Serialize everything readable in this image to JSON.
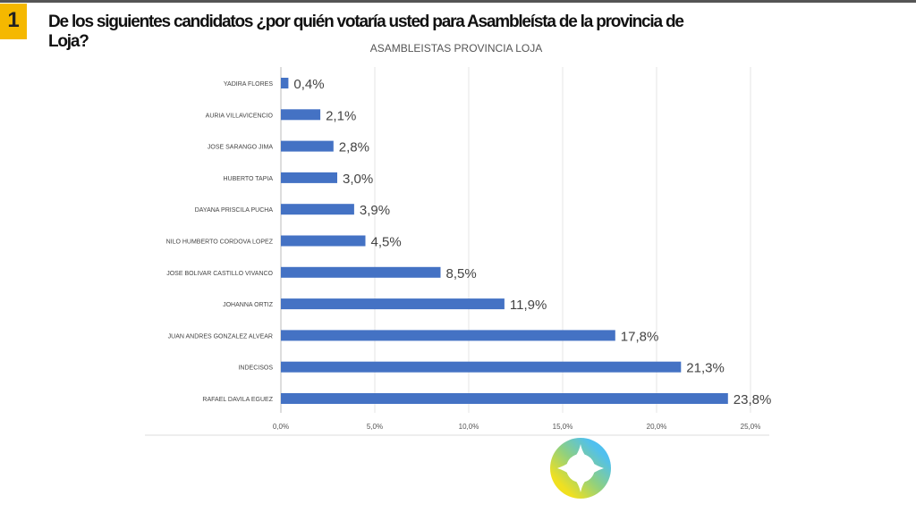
{
  "header": {
    "number": "1",
    "question": "De los siguientes candidatos ¿por quién votaría usted para Asambleísta de la provincia de Loja?"
  },
  "chart_data": {
    "type": "bar",
    "orientation": "horizontal",
    "title": "ASAMBLEISTAS PROVINCIA LOJA",
    "categories": [
      "YADIRA FLORES",
      "AURIA VILLAVICENCIO",
      "JOSE SARANGO JIMA",
      "HUBERTO TAPIA",
      "DAYANA PRISCILA PUCHA",
      "NILO HUMBERTO CORDOVA LOPEZ",
      "JOSE BOLIVAR CASTILLO VIVANCO",
      "JOHANNA ORTIZ",
      "JUAN ANDRES GONZALEZ ALVEAR",
      "INDECISOS",
      "RAFAEL DAVILA EGUEZ"
    ],
    "values": [
      0.4,
      2.1,
      2.8,
      3.0,
      3.9,
      4.5,
      8.5,
      11.9,
      17.8,
      21.3,
      23.8
    ],
    "data_labels": [
      "0,4%",
      "2,1%",
      "2,8%",
      "3,0%",
      "3,9%",
      "4,5%",
      "8,5%",
      "11,9%",
      "17,8%",
      "21,3%",
      "23,8%"
    ],
    "xticks": [
      0,
      5,
      10,
      15,
      20,
      25
    ],
    "xtick_labels": [
      "0,0%",
      "5,0%",
      "10,0%",
      "15,0%",
      "20,0%",
      "25,0%"
    ],
    "xlim": [
      0,
      25
    ],
    "grid": true,
    "bar_color": "#4472c4"
  }
}
